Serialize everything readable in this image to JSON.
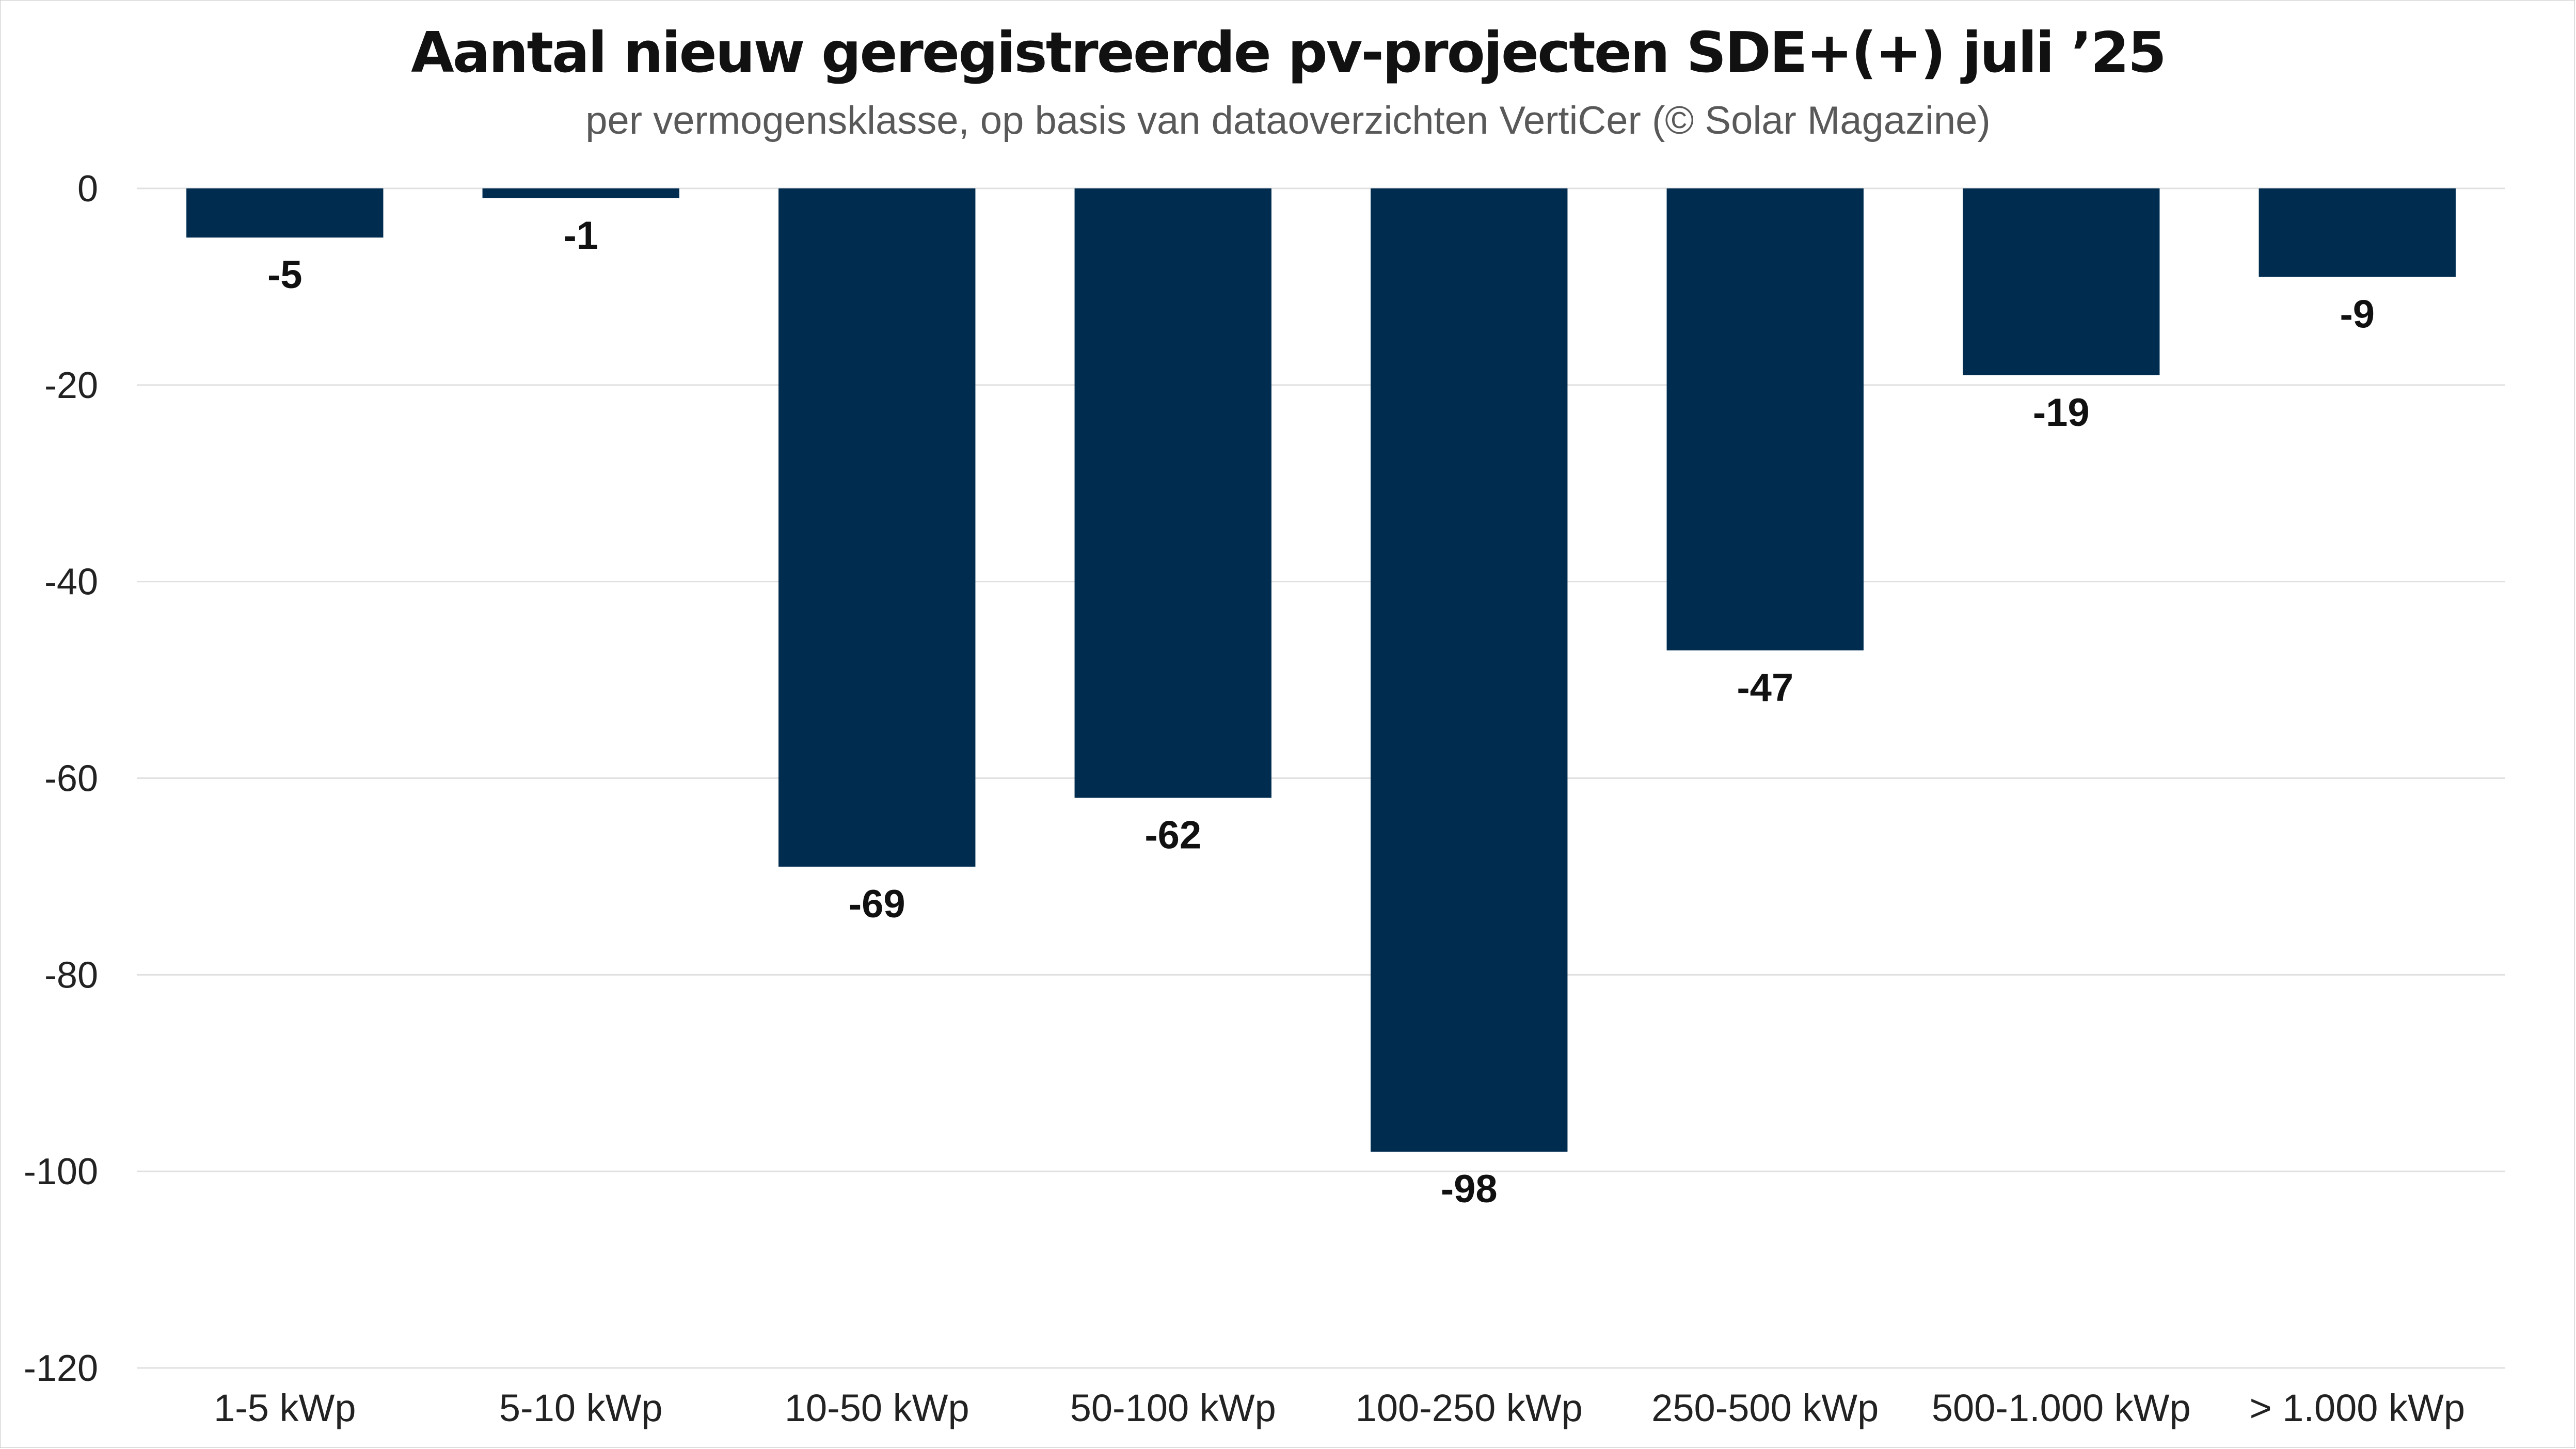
{
  "chart_data": {
    "type": "bar",
    "title": "Aantal nieuw geregistreerde pv-projecten SDE+(+) juli ’25",
    "subtitle": "per vermogensklasse, op basis van dataoverzichten VertiCer (© Solar Magazine)",
    "categories": [
      "1-5 kWp",
      "5-10 kWp",
      "10-50 kWp",
      "50-100 kWp",
      "100-250 kWp",
      "250-500 kWp",
      "500-1.000 kWp",
      "> 1.000 kWp"
    ],
    "values": [
      -5,
      -1,
      -69,
      -62,
      -98,
      -47,
      -19,
      -9
    ],
    "data_labels": [
      "-5",
      "-1",
      "-69",
      "-62",
      "-98",
      "-47",
      "-19",
      "-9"
    ],
    "ylim": [
      -120,
      0
    ],
    "yticks": [
      0,
      -20,
      -40,
      -60,
      -80,
      -100,
      -120
    ],
    "ytick_labels": [
      "0",
      "-20",
      "-40",
      "-60",
      "-80",
      "-100",
      "-120"
    ],
    "grid": true,
    "legend": "none",
    "colors": {
      "bar": "#002c50",
      "grid": "#e0e0e0"
    }
  }
}
